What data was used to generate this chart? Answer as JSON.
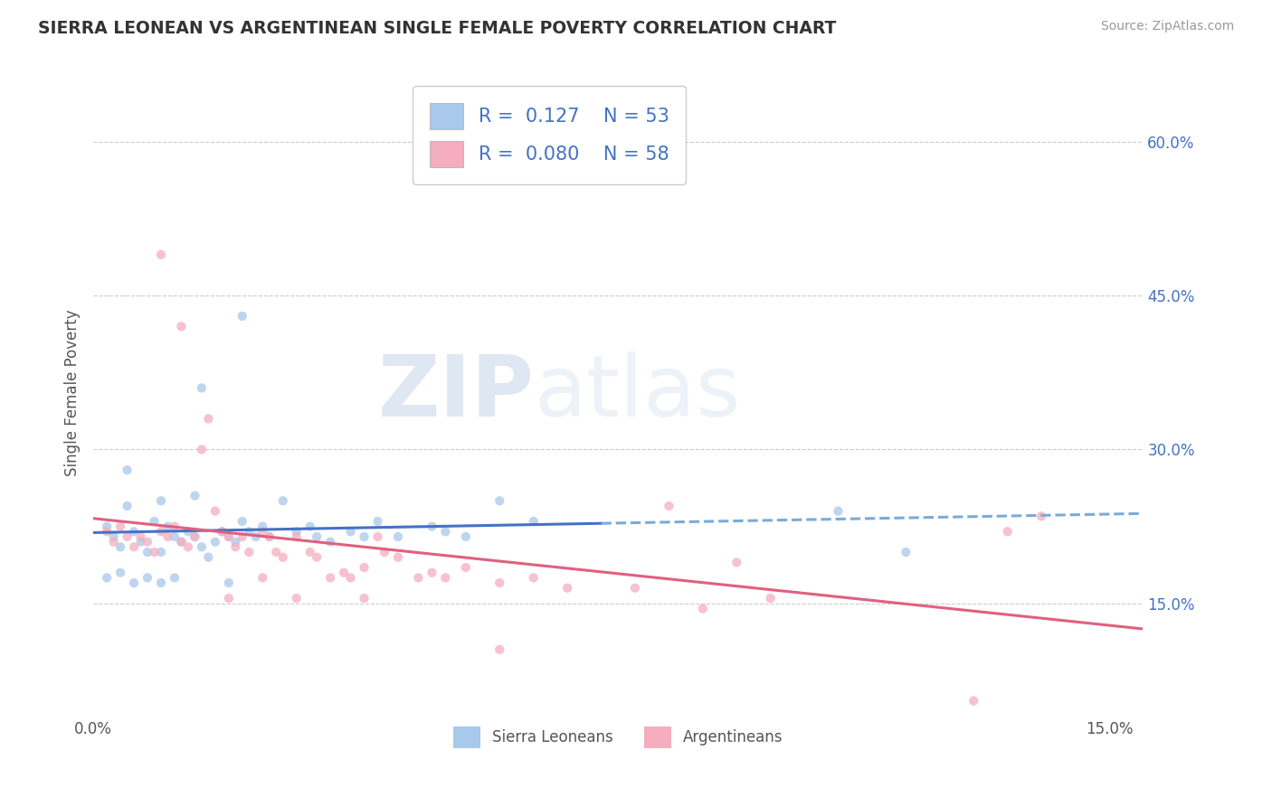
{
  "title": "SIERRA LEONEAN VS ARGENTINEAN SINGLE FEMALE POVERTY CORRELATION CHART",
  "source": "Source: ZipAtlas.com",
  "ylabel": "Single Female Poverty",
  "right_yticks": [
    "60.0%",
    "45.0%",
    "30.0%",
    "15.0%"
  ],
  "right_ytick_vals": [
    0.6,
    0.45,
    0.3,
    0.15
  ],
  "xlim": [
    0.0,
    0.155
  ],
  "ylim": [
    0.04,
    0.67
  ],
  "legend_blue_r": "0.127",
  "legend_blue_n": "53",
  "legend_pink_r": "0.080",
  "legend_pink_n": "58",
  "blue_color": "#a8c8ec",
  "pink_color": "#f5adc0",
  "blue_line_color": "#4472c4",
  "pink_line_color": "#e06080",
  "dashed_color": "#7aabda",
  "blue_scatter": [
    [
      0.002,
      0.225
    ],
    [
      0.003,
      0.215
    ],
    [
      0.004,
      0.205
    ],
    [
      0.005,
      0.28
    ],
    [
      0.005,
      0.245
    ],
    [
      0.006,
      0.22
    ],
    [
      0.007,
      0.21
    ],
    [
      0.008,
      0.2
    ],
    [
      0.009,
      0.23
    ],
    [
      0.01,
      0.25
    ],
    [
      0.01,
      0.2
    ],
    [
      0.011,
      0.225
    ],
    [
      0.012,
      0.215
    ],
    [
      0.013,
      0.21
    ],
    [
      0.014,
      0.22
    ],
    [
      0.015,
      0.255
    ],
    [
      0.015,
      0.215
    ],
    [
      0.016,
      0.205
    ],
    [
      0.017,
      0.195
    ],
    [
      0.018,
      0.21
    ],
    [
      0.019,
      0.22
    ],
    [
      0.02,
      0.215
    ],
    [
      0.021,
      0.21
    ],
    [
      0.022,
      0.23
    ],
    [
      0.023,
      0.22
    ],
    [
      0.024,
      0.215
    ],
    [
      0.025,
      0.225
    ],
    [
      0.026,
      0.215
    ],
    [
      0.028,
      0.25
    ],
    [
      0.03,
      0.22
    ],
    [
      0.032,
      0.225
    ],
    [
      0.033,
      0.215
    ],
    [
      0.035,
      0.21
    ],
    [
      0.038,
      0.22
    ],
    [
      0.04,
      0.215
    ],
    [
      0.042,
      0.23
    ],
    [
      0.045,
      0.215
    ],
    [
      0.05,
      0.225
    ],
    [
      0.052,
      0.22
    ],
    [
      0.055,
      0.215
    ],
    [
      0.06,
      0.25
    ],
    [
      0.065,
      0.23
    ],
    [
      0.002,
      0.175
    ],
    [
      0.004,
      0.18
    ],
    [
      0.006,
      0.17
    ],
    [
      0.008,
      0.175
    ],
    [
      0.01,
      0.17
    ],
    [
      0.012,
      0.175
    ],
    [
      0.02,
      0.17
    ],
    [
      0.022,
      0.43
    ],
    [
      0.016,
      0.36
    ],
    [
      0.11,
      0.24
    ],
    [
      0.12,
      0.2
    ]
  ],
  "pink_scatter": [
    [
      0.002,
      0.22
    ],
    [
      0.003,
      0.21
    ],
    [
      0.004,
      0.225
    ],
    [
      0.005,
      0.215
    ],
    [
      0.006,
      0.205
    ],
    [
      0.007,
      0.215
    ],
    [
      0.008,
      0.21
    ],
    [
      0.009,
      0.2
    ],
    [
      0.01,
      0.22
    ],
    [
      0.011,
      0.215
    ],
    [
      0.012,
      0.225
    ],
    [
      0.013,
      0.21
    ],
    [
      0.014,
      0.205
    ],
    [
      0.015,
      0.215
    ],
    [
      0.016,
      0.3
    ],
    [
      0.017,
      0.33
    ],
    [
      0.018,
      0.24
    ],
    [
      0.019,
      0.22
    ],
    [
      0.02,
      0.215
    ],
    [
      0.021,
      0.205
    ],
    [
      0.022,
      0.215
    ],
    [
      0.023,
      0.2
    ],
    [
      0.025,
      0.22
    ],
    [
      0.026,
      0.215
    ],
    [
      0.027,
      0.2
    ],
    [
      0.028,
      0.195
    ],
    [
      0.03,
      0.215
    ],
    [
      0.032,
      0.2
    ],
    [
      0.033,
      0.195
    ],
    [
      0.035,
      0.175
    ],
    [
      0.037,
      0.18
    ],
    [
      0.038,
      0.175
    ],
    [
      0.04,
      0.185
    ],
    [
      0.042,
      0.215
    ],
    [
      0.043,
      0.2
    ],
    [
      0.045,
      0.195
    ],
    [
      0.048,
      0.175
    ],
    [
      0.05,
      0.18
    ],
    [
      0.052,
      0.175
    ],
    [
      0.055,
      0.185
    ],
    [
      0.06,
      0.17
    ],
    [
      0.065,
      0.175
    ],
    [
      0.07,
      0.165
    ],
    [
      0.08,
      0.165
    ],
    [
      0.09,
      0.145
    ],
    [
      0.095,
      0.19
    ],
    [
      0.01,
      0.49
    ],
    [
      0.013,
      0.42
    ],
    [
      0.025,
      0.175
    ],
    [
      0.04,
      0.155
    ],
    [
      0.06,
      0.105
    ],
    [
      0.1,
      0.155
    ],
    [
      0.13,
      0.055
    ],
    [
      0.135,
      0.22
    ],
    [
      0.14,
      0.235
    ],
    [
      0.085,
      0.245
    ],
    [
      0.03,
      0.155
    ],
    [
      0.02,
      0.155
    ]
  ],
  "scatter_size": 55,
  "scatter_alpha": 0.75
}
